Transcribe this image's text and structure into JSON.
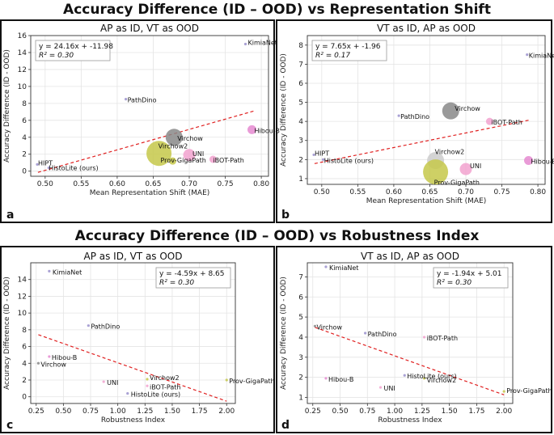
{
  "top_title": "Accuracy Difference (ID – OOD) vs Representation Shift",
  "bottom_title": "Accuracy Difference (ID – OOD) vs Robustness Index",
  "colors": {
    "fit": "#e02020",
    "axis": "#333333",
    "grid": "#e4e4e4"
  },
  "chart_data": [
    {
      "panel": "a",
      "type": "scatter",
      "title": "AP as ID, VT as OOD",
      "xlabel": "Mean Representation Shift (MAE)",
      "ylabel": "Accuracy Difference (ID - OOD)",
      "xlim": [
        0.48,
        0.81
      ],
      "ylim": [
        -0.6,
        16
      ],
      "xticks": [
        "0.50",
        "0.55",
        "0.60",
        "0.65",
        "0.70",
        "0.75",
        "0.80"
      ],
      "yticks": [
        "0",
        "2",
        "4",
        "6",
        "8",
        "10",
        "12",
        "14",
        "16"
      ],
      "equation": "y = 24.16x + -11.98",
      "r2": "R² = 0.30",
      "fit": {
        "slope": 24.16,
        "intercept": -11.98,
        "x_range": [
          0.49,
          0.79
        ]
      },
      "points": [
        {
          "label": "KimiaNet",
          "x": 0.778,
          "y": 15.0,
          "size": 1,
          "color": "#9a90cc"
        },
        {
          "label": "PathDino",
          "x": 0.612,
          "y": 8.5,
          "size": 1,
          "color": "#9a90cc"
        },
        {
          "label": "Hibou-B",
          "x": 0.787,
          "y": 4.9,
          "size": 4,
          "color": "#e58ad0"
        },
        {
          "label": "Virchow",
          "x": 0.679,
          "y": 4.0,
          "size": 9,
          "color": "#888888"
        },
        {
          "label": "Virchow2",
          "x": 0.658,
          "y": 2.1,
          "size": 14,
          "color": "#c6c84a"
        },
        {
          "label": "UNI",
          "x": 0.7,
          "y": 1.9,
          "size": 6,
          "color": "#f2a2cf"
        },
        {
          "label": "Prov-GigaPath",
          "x": 0.677,
          "y": 1.2,
          "size": 3,
          "color": "#c6c84a"
        },
        {
          "label": "iBOT-Path",
          "x": 0.733,
          "y": 1.4,
          "size": 3,
          "color": "#f2a2cf"
        },
        {
          "label": "HIPT",
          "x": 0.489,
          "y": 0.8,
          "size": 1,
          "color": "#9a90cc"
        },
        {
          "label": "HistoLite (ours)",
          "x": 0.505,
          "y": 0.4,
          "size": 1,
          "color": "#9a90cc"
        }
      ]
    },
    {
      "panel": "b",
      "type": "scatter",
      "title": "VT as ID, AP as OOD",
      "xlabel": "Mean Representation Shift (MAE)",
      "ylabel": "Accuracy Difference (ID - OOD)",
      "xlim": [
        0.48,
        0.81
      ],
      "ylim": [
        0.7,
        8.5
      ],
      "xticks": [
        "0.50",
        "0.55",
        "0.60",
        "0.65",
        "0.70",
        "0.75",
        "0.80"
      ],
      "yticks": [
        "1",
        "2",
        "3",
        "4",
        "5",
        "6",
        "7",
        "8"
      ],
      "equation": "y = 7.65x + -1.96",
      "r2": "R² = 0.17",
      "fit": {
        "slope": 7.65,
        "intercept": -1.96,
        "x_range": [
          0.49,
          0.79
        ]
      },
      "points": [
        {
          "label": "KimiaNet",
          "x": 0.785,
          "y": 7.5,
          "size": 1,
          "color": "#9a90cc"
        },
        {
          "label": "Virchow",
          "x": 0.679,
          "y": 4.55,
          "size": 9,
          "color": "#888888"
        },
        {
          "label": "PathDino",
          "x": 0.607,
          "y": 4.3,
          "size": 1,
          "color": "#9a90cc"
        },
        {
          "label": "iBOT-Path",
          "x": 0.733,
          "y": 4.0,
          "size": 3,
          "color": "#f2a2cf"
        },
        {
          "label": "HIPT",
          "x": 0.489,
          "y": 2.25,
          "size": 1,
          "color": "#9a90cc"
        },
        {
          "label": "HistoLite (ours)",
          "x": 0.502,
          "y": 2.0,
          "size": 1,
          "color": "#9a90cc"
        },
        {
          "label": "Virchow2",
          "x": 0.658,
          "y": 1.95,
          "size": 9,
          "color": "#cccccc"
        },
        {
          "label": "UNI",
          "x": 0.7,
          "y": 1.5,
          "size": 6,
          "color": "#f2a2cf"
        },
        {
          "label": "Prov-GigaPath",
          "x": 0.658,
          "y": 1.35,
          "size": 14,
          "color": "#c6c84a"
        },
        {
          "label": "Hibou-B",
          "x": 0.787,
          "y": 1.95,
          "size": 4,
          "color": "#e58ad0"
        }
      ]
    },
    {
      "panel": "c",
      "type": "scatter",
      "title": "AP as ID, VT as OOD",
      "xlabel": "Robustness Index",
      "ylabel": "Accuracy Difference (ID - OOD)",
      "xlim": [
        0.2,
        2.08
      ],
      "ylim": [
        -0.8,
        16
      ],
      "xticks": [
        "0.25",
        "0.50",
        "0.75",
        "1.00",
        "1.25",
        "1.50",
        "1.75",
        "2.00"
      ],
      "yticks": [
        "0",
        "2",
        "4",
        "6",
        "8",
        "10",
        "12",
        "14"
      ],
      "equation": "y = -4.59x + 8.65",
      "r2": "R² = 0.30",
      "fit": {
        "slope": -4.59,
        "intercept": 8.65,
        "x_range": [
          0.27,
          2.0
        ]
      },
      "points": [
        {
          "label": "KimiaNet",
          "x": 0.37,
          "y": 15.0,
          "size": 1,
          "color": "#9a90cc"
        },
        {
          "label": "PathDino",
          "x": 0.73,
          "y": 8.5,
          "size": 1,
          "color": "#9a90cc"
        },
        {
          "label": "Hibou-B",
          "x": 0.37,
          "y": 4.8,
          "size": 1,
          "color": "#e58ad0"
        },
        {
          "label": "Virchow",
          "x": 0.27,
          "y": 4.0,
          "size": 1,
          "color": "#888888"
        },
        {
          "label": "UNI",
          "x": 0.87,
          "y": 1.8,
          "size": 1,
          "color": "#f2a2cf"
        },
        {
          "label": "Virchow2",
          "x": 1.27,
          "y": 2.1,
          "size": 1,
          "color": "#c6c84a"
        },
        {
          "label": "iBOT-Path",
          "x": 1.27,
          "y": 1.3,
          "size": 1,
          "color": "#f2a2cf"
        },
        {
          "label": "HistoLite (ours)",
          "x": 1.09,
          "y": 0.4,
          "size": 1,
          "color": "#9a90cc"
        },
        {
          "label": "Prov-GigaPath",
          "x": 2.0,
          "y": 2.0,
          "size": 1,
          "color": "#c6c84a"
        }
      ]
    },
    {
      "panel": "d",
      "type": "scatter",
      "title": "VT as ID, AP as OOD",
      "xlabel": "Robustness Index",
      "ylabel": "Accuracy Difference (ID - OOD)",
      "xlim": [
        0.2,
        2.08
      ],
      "ylim": [
        0.7,
        7.7
      ],
      "xticks": [
        "0.25",
        "0.50",
        "0.75",
        "1.00",
        "1.25",
        "1.50",
        "1.75",
        "2.00"
      ],
      "yticks": [
        "1",
        "2",
        "3",
        "4",
        "5",
        "6",
        "7"
      ],
      "equation": "y = -1.94x + 5.01",
      "r2": "R² = 0.30",
      "fit": {
        "slope": -1.94,
        "intercept": 5.01,
        "x_range": [
          0.27,
          2.0
        ]
      },
      "points": [
        {
          "label": "KimiaNet",
          "x": 0.37,
          "y": 7.5,
          "size": 1,
          "color": "#9a90cc"
        },
        {
          "label": "Virchow",
          "x": 0.27,
          "y": 4.55,
          "size": 1,
          "color": "#888888"
        },
        {
          "label": "PathDino",
          "x": 0.73,
          "y": 4.2,
          "size": 1,
          "color": "#9a90cc"
        },
        {
          "label": "iBOT-Path",
          "x": 1.27,
          "y": 4.0,
          "size": 1,
          "color": "#f2a2cf"
        },
        {
          "label": "HistoLite (ours)",
          "x": 1.09,
          "y": 2.1,
          "size": 1,
          "color": "#9a90cc"
        },
        {
          "label": "Hibou-B",
          "x": 0.37,
          "y": 1.95,
          "size": 1,
          "color": "#e58ad0"
        },
        {
          "label": "Virchow2",
          "x": 1.27,
          "y": 1.95,
          "size": 1,
          "color": "#c6c84a"
        },
        {
          "label": "UNI",
          "x": 0.87,
          "y": 1.5,
          "size": 1,
          "color": "#f2a2cf"
        },
        {
          "label": "Prov-GigaPath",
          "x": 2.0,
          "y": 1.3,
          "size": 1,
          "color": "#c6c84a"
        }
      ]
    }
  ]
}
